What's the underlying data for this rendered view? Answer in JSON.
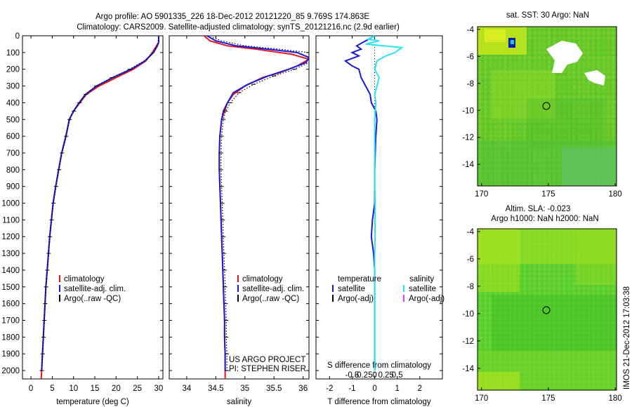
{
  "header": {
    "title1": "Argo profile: AO 5901335_226 18-Dec-2012 20121220_85 9.769S 174.863E",
    "title2": "Climatology: CARS2009. Satellite-adjusted climatology: synTS_20121216.nc (2.9d earlier)"
  },
  "side_label": "IMOS 21-Dec-2012 17:03:38",
  "project": {
    "line1": "US ARGO PROJECT",
    "line2": "PI: STEPHEN RISER"
  },
  "colors": {
    "climatology": "#e8141c",
    "satellite": "#1a1adc",
    "argo": "#000000",
    "sal_satellite": "#28e4f0",
    "sal_argo": "#e040e8"
  },
  "chart_data": [
    {
      "id": "temperature",
      "type": "line",
      "xlabel": "temperature (deg C)",
      "ylabel": "",
      "xlim": [
        -2,
        31
      ],
      "ylim": [
        2050,
        0
      ],
      "xticks": [
        0,
        5,
        10,
        15,
        20,
        25,
        30
      ],
      "xtick_labels": [
        "0",
        "5",
        "10",
        "15",
        "20",
        "25",
        "30"
      ],
      "yticks": [
        0,
        100,
        200,
        300,
        400,
        500,
        600,
        700,
        800,
        900,
        1000,
        1100,
        1200,
        1300,
        1400,
        1500,
        1600,
        1700,
        1800,
        1900,
        2000
      ],
      "legend": [
        "climatology",
        "satellite-adj. clim.",
        "Argo(..raw -QC)"
      ],
      "series": [
        {
          "name": "climatology",
          "color": "#e8141c",
          "points": [
            [
              30,
              0
            ],
            [
              30,
              40
            ],
            [
              29.5,
              60
            ],
            [
              28.5,
              100
            ],
            [
              27,
              150
            ],
            [
              24,
              200
            ],
            [
              20,
              250
            ],
            [
              16,
              300
            ],
            [
              13,
              350
            ],
            [
              11.5,
              400
            ],
            [
              10,
              450
            ],
            [
              9,
              500
            ],
            [
              8.2,
              600
            ],
            [
              7.2,
              700
            ],
            [
              6.5,
              800
            ],
            [
              5.8,
              900
            ],
            [
              5.2,
              1000
            ],
            [
              4.8,
              1100
            ],
            [
              4.4,
              1200
            ],
            [
              4.1,
              1300
            ],
            [
              3.8,
              1400
            ],
            [
              3.5,
              1500
            ],
            [
              3.3,
              1600
            ],
            [
              3.1,
              1700
            ],
            [
              2.9,
              1800
            ],
            [
              2.7,
              1900
            ],
            [
              2.5,
              2000
            ],
            [
              2.4,
              2050
            ]
          ]
        },
        {
          "name": "satellite-adj. clim.",
          "color": "#1a1adc",
          "points": [
            [
              30,
              0
            ],
            [
              30,
              40
            ],
            [
              29.7,
              60
            ],
            [
              28.8,
              100
            ],
            [
              26.8,
              150
            ],
            [
              23.5,
              200
            ],
            [
              19.2,
              250
            ],
            [
              15.4,
              300
            ],
            [
              12.8,
              350
            ],
            [
              11.3,
              400
            ],
            [
              10,
              450
            ],
            [
              9,
              500
            ],
            [
              8.2,
              600
            ],
            [
              7.2,
              700
            ],
            [
              6.5,
              800
            ],
            [
              5.8,
              900
            ],
            [
              5.2,
              1000
            ],
            [
              4.8,
              1100
            ],
            [
              4.4,
              1200
            ],
            [
              4.1,
              1300
            ],
            [
              3.8,
              1400
            ],
            [
              3.5,
              1500
            ],
            [
              3.3,
              1600
            ],
            [
              3.1,
              1700
            ],
            [
              2.9,
              1800
            ],
            [
              2.7,
              1900
            ],
            [
              2.5,
              2000
            ]
          ]
        },
        {
          "name": "Argo(..raw -QC)",
          "color": "#000000",
          "points": [
            [
              30,
              10
            ],
            [
              29.9,
              40
            ],
            [
              29.6,
              60
            ],
            [
              28.7,
              100
            ],
            [
              26.6,
              150
            ],
            [
              23.2,
              200
            ],
            [
              19,
              250
            ],
            [
              15.3,
              300
            ],
            [
              12.9,
              350
            ],
            [
              11.4,
              400
            ],
            [
              10.1,
              450
            ],
            [
              9.1,
              500
            ],
            [
              8.3,
              600
            ],
            [
              7.3,
              700
            ],
            [
              6.6,
              800
            ],
            [
              5.9,
              900
            ],
            [
              5.3,
              1000
            ],
            [
              4.85,
              1100
            ],
            [
              4.45,
              1200
            ],
            [
              4.15,
              1300
            ],
            [
              3.85,
              1400
            ],
            [
              3.55,
              1500
            ],
            [
              3.35,
              1600
            ],
            [
              3.15,
              1700
            ],
            [
              2.95,
              1800
            ],
            [
              2.75,
              1900
            ],
            [
              2.55,
              2000
            ]
          ]
        }
      ]
    },
    {
      "id": "salinity",
      "type": "line",
      "xlabel": "salinity",
      "xlim": [
        33.7,
        36.1
      ],
      "ylim": [
        2050,
        0
      ],
      "xticks": [
        34,
        34.5,
        35,
        35.5,
        36
      ],
      "xtick_labels": [
        "34",
        "34.5",
        "35",
        "35.5",
        "36"
      ],
      "legend": [
        "climatology",
        "satellite-adj. clim.",
        "Argo(..raw -QC)"
      ],
      "series": [
        {
          "name": "climatology",
          "color": "#e8141c",
          "points": [
            [
              34.3,
              0
            ],
            [
              34.4,
              30
            ],
            [
              34.7,
              60
            ],
            [
              35.2,
              80
            ],
            [
              35.8,
              110
            ],
            [
              36.1,
              140
            ],
            [
              35.9,
              180
            ],
            [
              35.6,
              220
            ],
            [
              35.3,
              250
            ],
            [
              35,
              300
            ],
            [
              34.8,
              350
            ],
            [
              34.7,
              400
            ],
            [
              34.65,
              450
            ],
            [
              34.6,
              500
            ],
            [
              34.57,
              600
            ],
            [
              34.56,
              700
            ],
            [
              34.56,
              800
            ],
            [
              34.57,
              900
            ],
            [
              34.58,
              1000
            ],
            [
              34.59,
              1100
            ],
            [
              34.6,
              1200
            ],
            [
              34.61,
              1300
            ],
            [
              34.62,
              1400
            ],
            [
              34.63,
              1500
            ],
            [
              34.64,
              1600
            ],
            [
              34.65,
              1700
            ],
            [
              34.65,
              1800
            ],
            [
              34.66,
              1900
            ],
            [
              34.66,
              2000
            ],
            [
              34.66,
              2050
            ]
          ]
        },
        {
          "name": "satellite-adj. clim.",
          "color": "#1a1adc",
          "points": [
            [
              34.35,
              0
            ],
            [
              34.5,
              30
            ],
            [
              34.85,
              60
            ],
            [
              35.4,
              80
            ],
            [
              35.9,
              100
            ],
            [
              36.1,
              130
            ],
            [
              36.05,
              160
            ],
            [
              35.75,
              200
            ],
            [
              35.4,
              240
            ],
            [
              35.05,
              290
            ],
            [
              34.8,
              340
            ],
            [
              34.7,
              400
            ],
            [
              34.63,
              450
            ],
            [
              34.6,
              500
            ],
            [
              34.57,
              600
            ],
            [
              34.56,
              700
            ],
            [
              34.56,
              800
            ],
            [
              34.57,
              900
            ],
            [
              34.58,
              1000
            ],
            [
              34.59,
              1100
            ],
            [
              34.6,
              1200
            ],
            [
              34.61,
              1300
            ],
            [
              34.62,
              1400
            ],
            [
              34.63,
              1500
            ],
            [
              34.64,
              1600
            ],
            [
              34.65,
              1700
            ],
            [
              34.65,
              1800
            ],
            [
              34.66,
              1900
            ],
            [
              34.66,
              2000
            ]
          ]
        },
        {
          "name": "Argo(..raw -QC)",
          "color": "#000000",
          "points": [
            [
              34.45,
              10
            ],
            [
              34.6,
              30
            ],
            [
              35,
              60
            ],
            [
              35.6,
              80
            ],
            [
              36.1,
              100
            ],
            [
              36.1,
              130
            ],
            [
              36.1,
              160
            ],
            [
              35.85,
              200
            ],
            [
              35.5,
              240
            ],
            [
              35.15,
              290
            ],
            [
              34.9,
              340
            ],
            [
              34.75,
              400
            ],
            [
              34.67,
              450
            ],
            [
              34.63,
              500
            ],
            [
              34.6,
              600
            ],
            [
              34.59,
              700
            ],
            [
              34.59,
              800
            ],
            [
              34.6,
              900
            ],
            [
              34.61,
              1000
            ],
            [
              34.62,
              1100
            ],
            [
              34.63,
              1200
            ],
            [
              34.64,
              1300
            ],
            [
              34.65,
              1400
            ],
            [
              34.66,
              1500
            ],
            [
              34.67,
              1600
            ],
            [
              34.68,
              1700
            ],
            [
              34.68,
              1800
            ],
            [
              34.69,
              1900
            ],
            [
              34.69,
              2000
            ]
          ]
        }
      ]
    },
    {
      "id": "difference",
      "type": "line",
      "xlabel": "T difference from climatology",
      "xlim": [
        -2.6,
        3
      ],
      "ylim": [
        2050,
        0
      ],
      "xticks": [
        -2,
        -1,
        0,
        1,
        2
      ],
      "xtick_labels": [
        "-2",
        "-1",
        "0",
        "1",
        "2"
      ],
      "top_label": "S difference from climatology",
      "s_ticks": [
        -0.5,
        -0.25,
        0,
        0.25,
        0.5
      ],
      "s_tick_labels": [
        "-0.5",
        "-0.25",
        "0",
        "0.25",
        "0.5"
      ],
      "legend_headers": [
        "temperature",
        "salinity"
      ],
      "legend_temp": [
        "satellite",
        "Argo(-adj)"
      ],
      "legend_sal": [
        "satellite",
        "Argo(-adj)"
      ],
      "series": [
        {
          "name": "temperature satellite",
          "color": "#1a1adc",
          "points": [
            [
              0,
              0
            ],
            [
              -0.4,
              30
            ],
            [
              -0.8,
              60
            ],
            [
              -0.6,
              80
            ],
            [
              -1.0,
              100
            ],
            [
              -0.7,
              120
            ],
            [
              -1.3,
              150
            ],
            [
              -1.0,
              180
            ],
            [
              -0.7,
              200
            ],
            [
              -0.6,
              250
            ],
            [
              -0.4,
              300
            ],
            [
              -0.2,
              350
            ],
            [
              -0.15,
              400
            ],
            [
              0.05,
              450
            ],
            [
              0.1,
              500
            ],
            [
              0.05,
              600
            ],
            [
              0,
              800
            ],
            [
              0,
              1000
            ],
            [
              -0.1,
              1100
            ],
            [
              -0.15,
              1200
            ],
            [
              -0.05,
              1300
            ],
            [
              0,
              1400
            ],
            [
              0,
              1600
            ],
            [
              0,
              1800
            ],
            [
              0,
              2000
            ]
          ]
        },
        {
          "name": "salinity satellite",
          "color": "#28e4f0",
          "points": [
            [
              0,
              0
            ],
            [
              -0.3,
              20
            ],
            [
              0.2,
              30
            ],
            [
              -0.4,
              50
            ],
            [
              1.2,
              70
            ],
            [
              0.9,
              100
            ],
            [
              0.5,
              120
            ],
            [
              0.1,
              150
            ],
            [
              0.0,
              200
            ],
            [
              0.2,
              250
            ],
            [
              0.1,
              300
            ],
            [
              0.0,
              350
            ],
            [
              0.05,
              400
            ],
            [
              0,
              500
            ],
            [
              0,
              700
            ],
            [
              0,
              900
            ],
            [
              0.02,
              1000
            ],
            [
              0.02,
              1200
            ],
            [
              0,
              1300
            ],
            [
              0,
              1500
            ],
            [
              0,
              1700
            ],
            [
              0,
              1900
            ],
            [
              0,
              2000
            ]
          ]
        }
      ]
    }
  ],
  "maps": [
    {
      "id": "sst",
      "title1": "sat. SST: 30 Argo: NaN",
      "title2": "",
      "xlim": [
        169.7,
        180.1
      ],
      "ylim": [
        -15.6,
        -3.8
      ],
      "xticks": [
        170,
        175,
        180
      ],
      "xtick_labels": [
        "170",
        "175",
        "180"
      ],
      "yticks": [
        -4,
        -6,
        -8,
        -10,
        -12,
        -14
      ],
      "ytick_labels": [
        "-4",
        "-6",
        "-8",
        "-10",
        "-12",
        "-14"
      ],
      "marker": {
        "lon": 174.863,
        "lat": -9.769
      }
    },
    {
      "id": "sla",
      "title1": "Altim. SLA: -0.023",
      "title2": "Argo h1000: NaN h2000: NaN",
      "xlim": [
        169.7,
        180.1
      ],
      "ylim": [
        -15.6,
        -3.8
      ],
      "xticks": [
        170,
        175,
        180
      ],
      "xtick_labels": [
        "170",
        "175",
        "180"
      ],
      "yticks": [
        -4,
        -6,
        -8,
        -10,
        -12,
        -14
      ],
      "ytick_labels": [
        "-4",
        "-6",
        "-8",
        "-10",
        "-12",
        "-14"
      ],
      "marker": {
        "lon": 174.863,
        "lat": -9.769
      }
    }
  ]
}
